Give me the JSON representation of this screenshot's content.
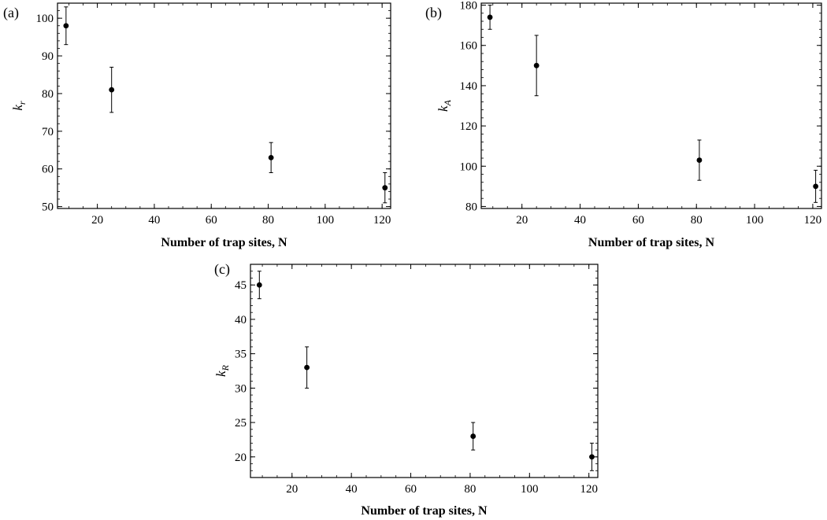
{
  "chart_data": [
    {
      "type": "scatter",
      "panel_label": "(a)",
      "xlabel": "Number of trap sites, N",
      "ylabel_main": "k",
      "ylabel_sub": "r",
      "xlim": [
        6,
        123
      ],
      "ylim": [
        49.5,
        104
      ],
      "xticks": [
        20,
        40,
        60,
        80,
        100,
        120
      ],
      "yticks": [
        50,
        60,
        70,
        80,
        90,
        100
      ],
      "points": [
        {
          "x": 9,
          "y": 98,
          "err": 5
        },
        {
          "x": 25,
          "y": 81,
          "err": 6
        },
        {
          "x": 81,
          "y": 63,
          "err": 4
        },
        {
          "x": 121,
          "y": 55,
          "err": 4
        }
      ]
    },
    {
      "type": "scatter",
      "panel_label": "(b)",
      "xlabel": "Number of trap sites, N",
      "ylabel_main": "k",
      "ylabel_sub": "A",
      "xlim": [
        6,
        123
      ],
      "ylim": [
        79,
        181
      ],
      "xticks": [
        20,
        40,
        60,
        80,
        100,
        120
      ],
      "yticks": [
        80,
        100,
        120,
        140,
        160,
        180
      ],
      "points": [
        {
          "x": 9,
          "y": 174,
          "err": 6
        },
        {
          "x": 25,
          "y": 150,
          "err": 15
        },
        {
          "x": 81,
          "y": 103,
          "err": 10
        },
        {
          "x": 121,
          "y": 90,
          "err": 8
        }
      ]
    },
    {
      "type": "scatter",
      "panel_label": "(c)",
      "xlabel": "Number of trap sites, N",
      "ylabel_main": "k",
      "ylabel_sub": "R",
      "xlim": [
        6,
        123
      ],
      "ylim": [
        17,
        48
      ],
      "xticks": [
        20,
        40,
        60,
        80,
        100,
        120
      ],
      "yticks": [
        20,
        25,
        30,
        35,
        40,
        45
      ],
      "points": [
        {
          "x": 9,
          "y": 45,
          "err": 2
        },
        {
          "x": 25,
          "y": 33,
          "err": 3
        },
        {
          "x": 81,
          "y": 23,
          "err": 2
        },
        {
          "x": 121,
          "y": 20,
          "err": 2
        }
      ]
    }
  ]
}
